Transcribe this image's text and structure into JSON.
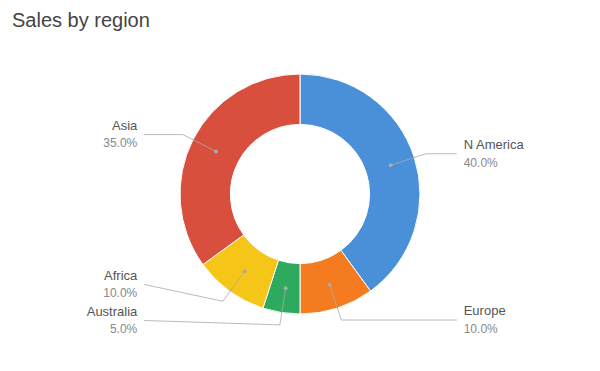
{
  "chart_data": {
    "type": "donut",
    "title": "Sales by region",
    "categories": [
      "N America",
      "Europe",
      "Australia",
      "Africa",
      "Asia"
    ],
    "values": [
      40.0,
      10.0,
      5.0,
      10.0,
      35.0
    ],
    "value_labels": [
      "40.0%",
      "10.0%",
      "5.0%",
      "10.0%",
      "35.0%"
    ],
    "colors": [
      "#4A90D9",
      "#F47B20",
      "#2EAA5E",
      "#F5C518",
      "#D94F3D"
    ],
    "data_labels": true
  }
}
